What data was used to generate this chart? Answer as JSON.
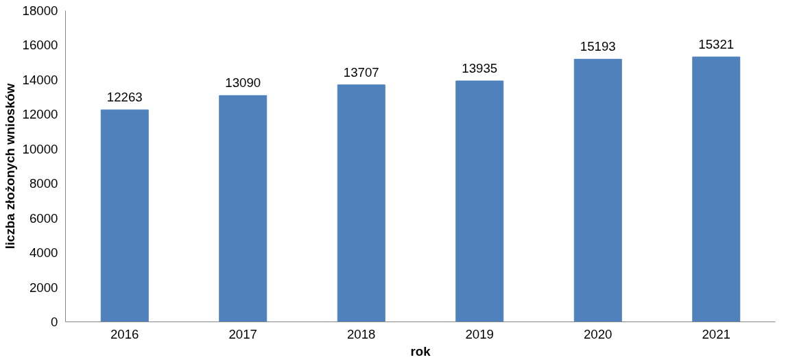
{
  "chart_data": {
    "type": "bar",
    "xlabel": "rok",
    "ylabel": "liczba złożonych wniosków",
    "categories": [
      "2016",
      "2017",
      "2018",
      "2019",
      "2020",
      "2021"
    ],
    "values": [
      12263,
      13090,
      13707,
      13935,
      15193,
      15321
    ],
    "color": "#4f81bd",
    "data_labels": true,
    "grid": false,
    "ylim": [
      0,
      18000
    ],
    "yticks": [
      0,
      2000,
      4000,
      6000,
      8000,
      10000,
      12000,
      14000,
      16000,
      18000
    ]
  }
}
